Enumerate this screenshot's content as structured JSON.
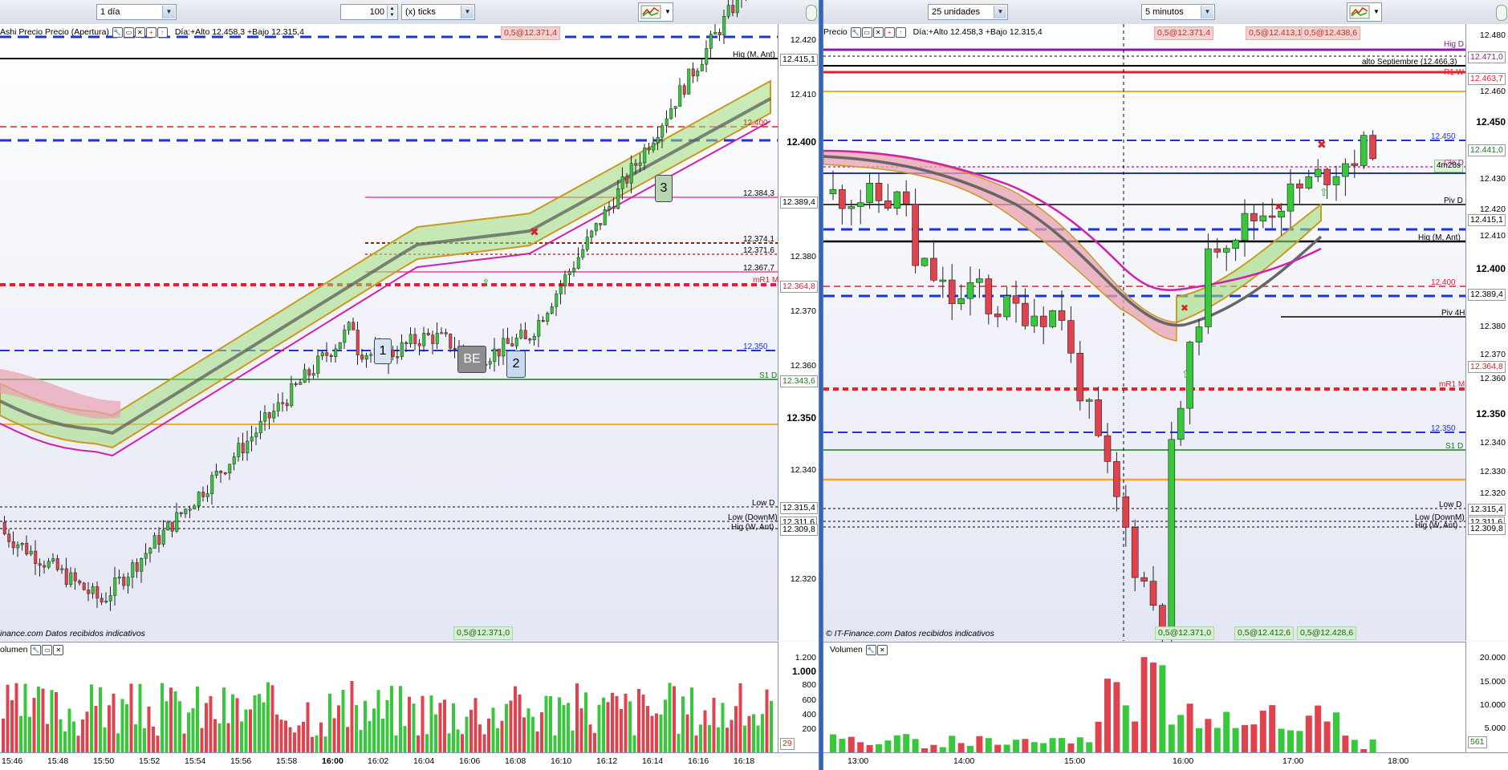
{
  "left": {
    "toolbar": {
      "period": "1 día",
      "ticks_value": "100",
      "ticks_unit": "(x) ticks"
    },
    "info": {
      "title": "Ashi Precio Precio (Apertura)",
      "range": "Día:+Alto 12.458,3 +Bajo 12.315,4",
      "order_tag": "0,5@12.371,4"
    },
    "footer": "inance.com  Datos recibidos indicativos",
    "bottom_order_tag": "0,5@12.371,0",
    "y_labels": [
      "12.420",
      "12.410",
      "12.400",
      "12.389,4",
      "12.380",
      "12.370",
      "12.360",
      "12.350",
      "12.340",
      "12.330",
      "12.320"
    ],
    "y_boxed": [
      "12.415,1",
      "12.389,4",
      "12.364,8",
      "12.343,6",
      "12.315,4",
      "12.311,6",
      "12.309,8"
    ],
    "line_labels": {
      "hig_m_ant": "Hig (M, Ant)",
      "lvl_12400": "12.400",
      "lvl_12384": "12.384,3",
      "lvl_12374": "12.374,1",
      "lvl_12371": "12.371,6",
      "lvl_12367": "12.367,7",
      "mr1": "mR1 M",
      "lvl_12350": "12.350",
      "s1": "S1 D",
      "low_d": "Low D",
      "low_down": "Low (DownM)",
      "hig_w_ant": "Hig (W, Ant)"
    },
    "markers": {
      "m1": "1",
      "be": "BE",
      "m2": "2",
      "m3": "3"
    },
    "volume": {
      "title": "olumen",
      "labels": [
        "1.200",
        "1.000",
        "800",
        "600",
        "400",
        "200"
      ],
      "last": "29"
    },
    "x_labels": [
      "15:46",
      "15:48",
      "15:50",
      "15:52",
      "15:54",
      "15:56",
      "15:58",
      "16:00",
      "16:02",
      "16:04",
      "16:06",
      "16:08",
      "16:10",
      "16:12",
      "16:14",
      "16:16",
      "16:18"
    ]
  },
  "right": {
    "toolbar": {
      "units": "25 unidades",
      "interval": "5 minutos"
    },
    "info": {
      "title": "Precio",
      "range": "Día:+Alto 12.458,3 +Bajo 12.315,4",
      "tags": [
        "0,5@12.371,4",
        "0,5@12.413,1",
        "0,5@12.438,6"
      ]
    },
    "footer": "© IT-Finance.com  Datos recibidos indicativos",
    "bottom_tags": [
      "0,5@12.371,0",
      "0,5@12.412,6",
      "0,5@12.428,6"
    ],
    "y_labels": [
      "12.480",
      "12.460",
      "12.450",
      "12.430",
      "12.420",
      "12.410",
      "12.400",
      "12.380",
      "12.370",
      "12.360",
      "12.350",
      "12.340",
      "12.330",
      "12.320"
    ],
    "y_boxed": [
      "12.471,0",
      "12.463,7",
      "12.441,0",
      "12.415,1",
      "12.389,4",
      "12.364,8",
      "12.315,4",
      "12.311,6",
      "12.309,8"
    ],
    "timer": "4m28s",
    "line_labels": {
      "hig_d": "Hig D",
      "alto_sept": "alto Septiembre (12.466,3)",
      "r1w": "R1 W",
      "lvl_12450": "12.450",
      "clo_d": "Clo D",
      "piv_d": "Piv D",
      "hig_m_ant": "Hig (M, Ant)",
      "lvl_12400": "12.400",
      "piv_4h": "Piv 4H",
      "mr1": "mR1 M",
      "lvl_12350": "12.350",
      "s1": "S1 D",
      "low_d": "Low D",
      "low_down": "Low (DownM)",
      "hig_w_ant": "Hig (W, Ant)"
    },
    "volume": {
      "title": "Volumen",
      "labels": [
        "20.000",
        "15.000",
        "10.000",
        "5.000"
      ],
      "last": "561"
    },
    "x_labels": [
      "13:00",
      "14:00",
      "15:00",
      "16:00",
      "17:00",
      "18:00"
    ]
  },
  "colors": {
    "accent_blue": "#1c33d8",
    "red_level": "#e8202a",
    "green_band": "#9fdc7a",
    "pink_band": "#e8a0b0",
    "volume_up": "#38c83c",
    "volume_down": "#e0424e"
  }
}
